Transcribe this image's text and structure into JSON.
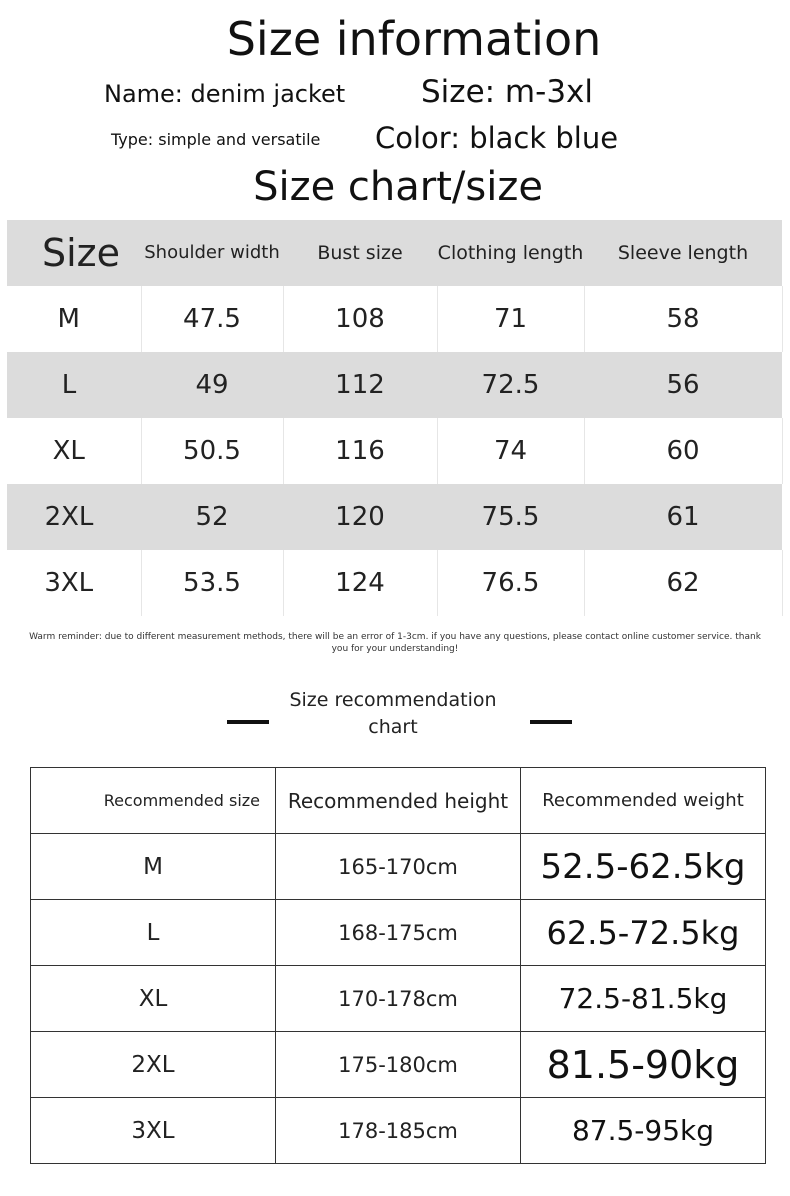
{
  "title": "Size information",
  "name": "Name: denim jacket",
  "size": "Size: m-3xl",
  "type": "Type: simple and versatile",
  "color": "Color: black blue",
  "chart_title": "Size chart/size",
  "size_table": {
    "headers": [
      "Size",
      "Shoulder width",
      "Bust size",
      "Clothing length",
      "Sleeve length"
    ],
    "rows": [
      [
        "M",
        "47.5",
        "108",
        "71",
        "58"
      ],
      [
        "L",
        "49",
        "112",
        "72.5",
        "56"
      ],
      [
        "XL",
        "50.5",
        "116",
        "74",
        "60"
      ],
      [
        "2XL",
        "52",
        "120",
        "75.5",
        "61"
      ],
      [
        "3XL",
        "53.5",
        "124",
        "76.5",
        "62"
      ]
    ]
  },
  "reminder": "Warm reminder: due to different measurement methods, there will be an error of 1-3cm. if you have any questions, please contact online customer service. thank you for your understanding!",
  "rec_title": "Size recommendation chart",
  "rec_table": {
    "headers": [
      "Recommended size",
      "Recommended height",
      "Recommended weight"
    ],
    "rows": [
      [
        "M",
        "165-170cm",
        "52.5-62.5kg"
      ],
      [
        "L",
        "168-175cm",
        "62.5-72.5kg"
      ],
      [
        "XL",
        "170-178cm",
        "72.5-81.5kg"
      ],
      [
        "2XL",
        "175-180cm",
        "81.5-90kg"
      ],
      [
        "3XL",
        "178-185cm",
        "87.5-95kg"
      ]
    ]
  }
}
